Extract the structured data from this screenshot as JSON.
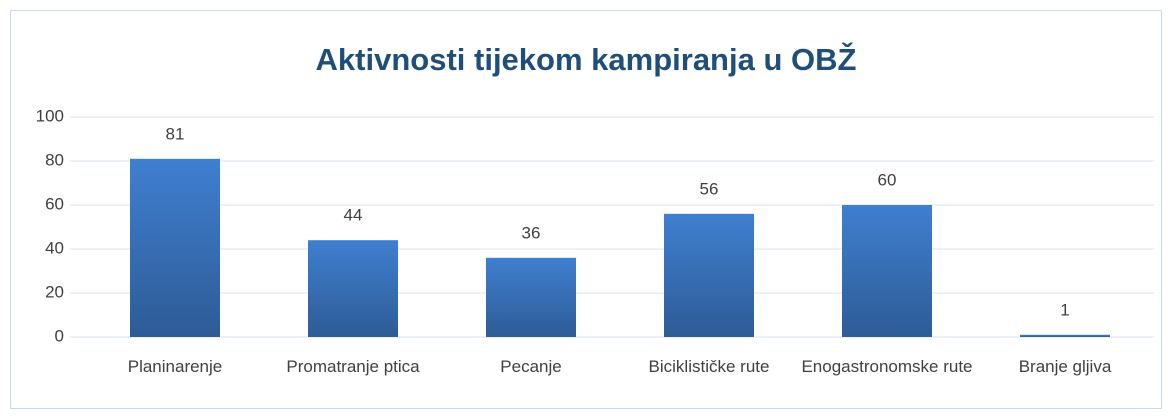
{
  "chart_data": {
    "type": "bar",
    "title": "Aktivnosti tijekom kampiranja u OBŽ",
    "categories": [
      "Planinarenje",
      "Promatranje ptica",
      "Pecanje",
      "Biciklističke rute",
      "Enogastronomske rute",
      "Branje gljiva"
    ],
    "values": [
      81,
      44,
      36,
      56,
      60,
      1
    ],
    "color": "#3f7fd0",
    "ylim": [
      0,
      100
    ],
    "yticks": [
      0,
      20,
      40,
      60,
      80,
      100
    ],
    "grid": true
  }
}
